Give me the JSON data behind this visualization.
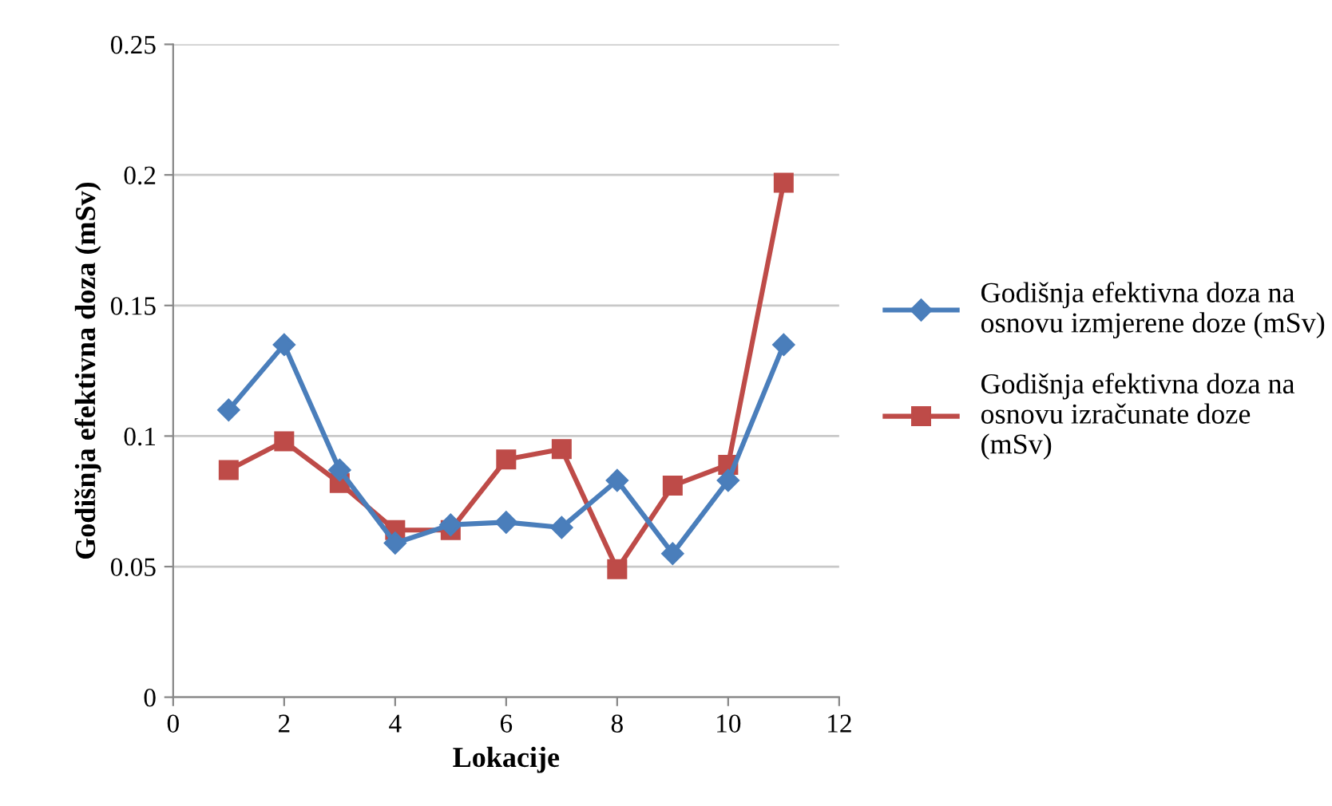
{
  "chart_data": {
    "type": "line",
    "xlabel": "Lokacije",
    "ylabel": "Godišnja efektivna doza (mSv)",
    "xlim": [
      0,
      12
    ],
    "xticks": [
      0,
      2,
      4,
      6,
      8,
      10,
      12
    ],
    "ylim": [
      0,
      0.25
    ],
    "yticks": [
      0,
      0.05,
      0.1,
      0.15,
      0.2,
      0.25
    ],
    "grid": "y",
    "legend": "right",
    "series": [
      {
        "name": "Godišnja efektivna doza na\nosnovu izmjerene doze (mSv)",
        "color": "#4a7ebb",
        "marker": "diamond",
        "x": [
          1,
          2,
          3,
          4,
          5,
          6,
          7,
          8,
          9,
          10,
          11
        ],
        "values": [
          0.11,
          0.135,
          0.087,
          0.059,
          0.066,
          0.067,
          0.065,
          0.083,
          0.055,
          0.083,
          0.135
        ]
      },
      {
        "name": "Godišnja efektivna doza na\nosnovu izračunate doze\n(mSv)",
        "color": "#be4b48",
        "marker": "square",
        "x": [
          1,
          2,
          3,
          4,
          5,
          6,
          7,
          8,
          9,
          10,
          11
        ],
        "values": [
          0.087,
          0.098,
          0.082,
          0.064,
          0.064,
          0.091,
          0.095,
          0.049,
          0.081,
          0.089,
          0.197
        ]
      }
    ]
  }
}
